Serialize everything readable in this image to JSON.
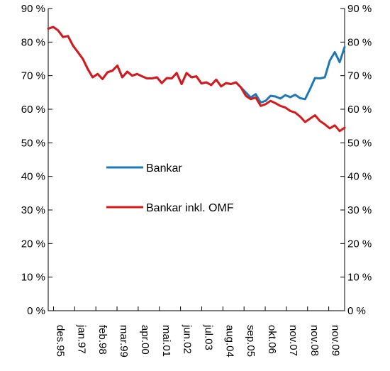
{
  "chart_data": {
    "type": "line",
    "title": "",
    "xlabel": "",
    "ylabel": "",
    "ylim": [
      0,
      90
    ],
    "y_ticks": [
      "0 %",
      "10 %",
      "20 %",
      "30 %",
      "40 %",
      "50 %",
      "60 %",
      "70 %",
      "80 %",
      "90 %"
    ],
    "y_axes": "left and right",
    "x_tick_labels": [
      "des.95",
      "jan.97",
      "feb.98",
      "mar.99",
      "apr.00",
      "mai.01",
      "jun.02",
      "jul.03",
      "aug.04",
      "sep.05",
      "okt.06",
      "nov.07",
      "nov.08",
      "nov.09"
    ],
    "x_tick_label_orientation": "vertical",
    "grid": false,
    "legend": {
      "placement": "center-left"
    },
    "colors": {
      "bankar": "#1f78b4",
      "bankar_omf": "#d7191c"
    },
    "series": [
      {
        "name": "Bankar",
        "color": "#1f78b4",
        "values": [
          84,
          84.5,
          83.5,
          81.5,
          81.8,
          79,
          77,
          75,
          72,
          69.5,
          70.5,
          69,
          71,
          71.5,
          73,
          69.5,
          71.2,
          70,
          70.5,
          69.8,
          69.2,
          69.2,
          69.5,
          67.8,
          69.3,
          69.2,
          70.8,
          67.5,
          70.8,
          69.5,
          69.8,
          67.7,
          68,
          67.2,
          68.8,
          66.8,
          67.8,
          67.5,
          68,
          66.5,
          65,
          63.5,
          64.5,
          62,
          62.5,
          64,
          63.8,
          63.2,
          64.2,
          63.6,
          64.3,
          63.3,
          63,
          66,
          69.3,
          69.2,
          69.5,
          74.5,
          77,
          74,
          78.5
        ]
      },
      {
        "name": "Bankar inkl. OMF",
        "color": "#d7191c",
        "values": [
          84,
          84.5,
          83.5,
          81.5,
          81.8,
          79,
          77,
          75,
          72,
          69.5,
          70.5,
          69,
          71,
          71.5,
          73,
          69.5,
          71.2,
          70,
          70.5,
          69.8,
          69.2,
          69.2,
          69.5,
          67.8,
          69.3,
          69.2,
          70.8,
          67.5,
          70.8,
          69.5,
          69.8,
          67.7,
          68,
          67.2,
          68.8,
          66.8,
          67.8,
          67.5,
          68,
          66.5,
          64,
          63,
          63.5,
          61,
          61.5,
          62.5,
          61.8,
          61,
          60.5,
          59.5,
          59,
          57.8,
          56.2,
          57.2,
          58.2,
          56.5,
          55.5,
          54.3,
          55.2,
          53.5,
          54.5
        ]
      }
    ]
  }
}
